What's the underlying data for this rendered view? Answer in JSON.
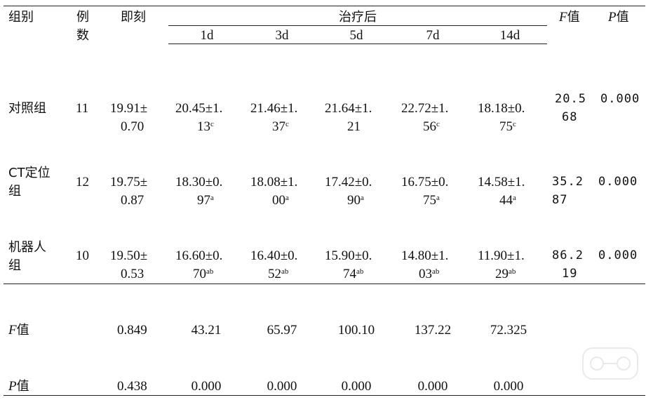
{
  "header": {
    "group": "组别",
    "n_line1": "例",
    "n_line2": "数",
    "immediate": "即刻",
    "after": "治疗后",
    "f": "F",
    "p": "P",
    "zhi": "值",
    "days": [
      "1d",
      "3d",
      "5d",
      "7d",
      "14d"
    ]
  },
  "rows": [
    {
      "group_line1": "对照组",
      "group_line2": "",
      "n": "11",
      "immediate": [
        "19.91±",
        "0.70"
      ],
      "cells": [
        {
          "l1": "20.45±1.",
          "l2": "13",
          "sup": "c"
        },
        {
          "l1": "21.46±1.",
          "l2": "37",
          "sup": "c"
        },
        {
          "l1": "21.64±1.",
          "l2": "21",
          "sup": ""
        },
        {
          "l1": "22.72±1.",
          "l2": "56",
          "sup": "c"
        },
        {
          "l1": "18.18±0.",
          "l2": "75",
          "sup": "c"
        }
      ],
      "f": [
        "20.5",
        "68"
      ],
      "p": "0.000"
    },
    {
      "group_line1": "CT定位",
      "group_line2": "组",
      "n": "12",
      "immediate": [
        "19.75±",
        "0.87"
      ],
      "cells": [
        {
          "l1": "18.30±0.",
          "l2": "97",
          "sup": "a"
        },
        {
          "l1": "18.08±1.",
          "l2": "00",
          "sup": "a"
        },
        {
          "l1": "17.42±0.",
          "l2": "90",
          "sup": "a"
        },
        {
          "l1": "16.75±0.",
          "l2": "75",
          "sup": "a"
        },
        {
          "l1": "14.58±1.",
          "l2": "44",
          "sup": "a"
        }
      ],
      "f": [
        "35.2",
        "87"
      ],
      "p": "0.000"
    },
    {
      "group_line1": "机器人",
      "group_line2": "组",
      "n": "10",
      "immediate": [
        "19.50±",
        "0.53"
      ],
      "cells": [
        {
          "l1": "16.60±0.",
          "l2": "70",
          "sup": "ab"
        },
        {
          "l1": "16.40±0.",
          "l2": "52",
          "sup": "ab"
        },
        {
          "l1": "15.90±0.",
          "l2": "74",
          "sup": "ab"
        },
        {
          "l1": "14.80±1.",
          "l2": "03",
          "sup": "ab"
        },
        {
          "l1": "11.90±1.",
          "l2": "29",
          "sup": "ab"
        }
      ],
      "f": [
        "86.2",
        "19"
      ],
      "p": "0.000"
    }
  ],
  "f_row": {
    "label_letter": "F",
    "label_suffix": "值",
    "immediate": "0.849",
    "values": [
      "43.21",
      "65.97",
      "100.10",
      "137.22",
      "72.325"
    ]
  },
  "p_row": {
    "label_letter": "P",
    "label_suffix": "值",
    "immediate": "0.438",
    "values": [
      "0.000",
      "0.000",
      "0.000",
      "0.000",
      "0.000"
    ]
  }
}
